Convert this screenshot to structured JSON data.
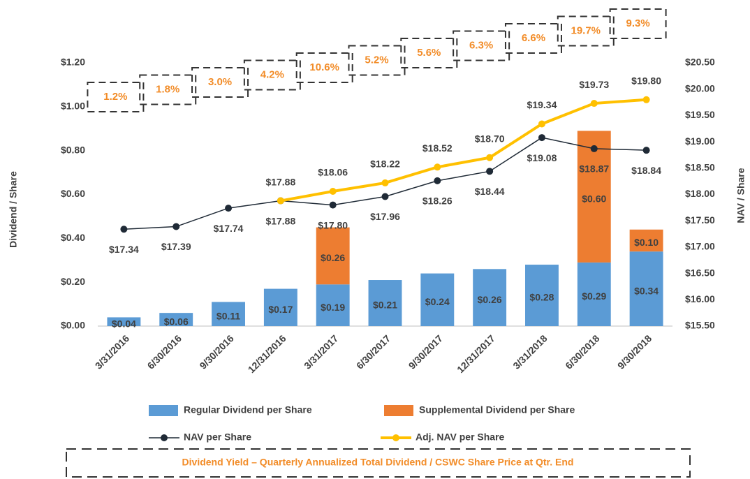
{
  "chart_data": {
    "type": "combo",
    "categories": [
      "3/31/2016",
      "6/30/2016",
      "9/30/2016",
      "12/31/2016",
      "3/31/2017",
      "6/30/2017",
      "9/30/2017",
      "12/31/2017",
      "3/31/2018",
      "6/30/2018",
      "9/30/2018"
    ],
    "ylabel": "Dividend / Share",
    "y2label": "NAV / Share",
    "ylim": [
      0,
      1.2
    ],
    "yticks": [
      {
        "value": 0,
        "label": "$0.00"
      },
      {
        "value": 0.2,
        "label": "$0.20"
      },
      {
        "value": 0.4,
        "label": "$0.40"
      },
      {
        "value": 0.6,
        "label": "$0.60"
      },
      {
        "value": 0.8,
        "label": "$0.80"
      },
      {
        "value": 1.0,
        "label": "$1.00"
      },
      {
        "value": 1.2,
        "label": "$1.20"
      }
    ],
    "y2lim": [
      15.5,
      20.5
    ],
    "y2ticks": [
      {
        "value": 15.5,
        "label": "$15.50"
      },
      {
        "value": 16,
        "label": "$16.00"
      },
      {
        "value": 16.5,
        "label": "$16.50"
      },
      {
        "value": 17,
        "label": "$17.00"
      },
      {
        "value": 17.5,
        "label": "$17.50"
      },
      {
        "value": 18,
        "label": "$18.00"
      },
      {
        "value": 18.5,
        "label": "$18.50"
      },
      {
        "value": 19,
        "label": "$19.00"
      },
      {
        "value": 19.5,
        "label": "$19.50"
      },
      {
        "value": 20,
        "label": "$20.00"
      },
      {
        "value": 20.5,
        "label": "$20.50"
      }
    ],
    "legend": "bottom",
    "series": [
      {
        "name": "Regular Dividend per Share",
        "type": "bar",
        "color": "#5b9bd5",
        "values": [
          0.04,
          0.06,
          0.11,
          0.17,
          0.19,
          0.21,
          0.24,
          0.26,
          0.28,
          0.29,
          0.34
        ],
        "value_labels": [
          "$0.04",
          "$0.06",
          "$0.11",
          "$0.17",
          "$0.19",
          "$0.21",
          "$0.24",
          "$0.26",
          "$0.28",
          "$0.29",
          "$0.34"
        ]
      },
      {
        "name": "Supplemental Dividend per Share",
        "type": "bar",
        "color": "#ed7d31",
        "values": [
          null,
          null,
          null,
          null,
          0.26,
          null,
          null,
          null,
          null,
          0.6,
          0.1
        ],
        "value_labels": [
          null,
          null,
          null,
          null,
          "$0.26",
          null,
          null,
          null,
          null,
          "$0.60",
          "$0.10"
        ]
      },
      {
        "name": "NAV per Share",
        "type": "line",
        "axis": "y2",
        "color": "#1f2a36",
        "values": [
          17.34,
          17.39,
          17.74,
          17.88,
          17.8,
          17.96,
          18.26,
          18.44,
          19.08,
          18.87,
          18.84
        ],
        "value_labels": [
          "$17.34",
          "$17.39",
          "$17.74",
          "$17.88",
          "$17.80",
          "$17.96",
          "$18.26",
          "$18.44",
          "$19.08",
          "$18.87",
          "$18.84"
        ]
      },
      {
        "name": "Adj. NAV per Share",
        "type": "line",
        "axis": "y2",
        "color": "#ffc000",
        "values": [
          null,
          null,
          null,
          17.88,
          18.06,
          18.22,
          18.52,
          18.7,
          19.34,
          19.73,
          19.8
        ],
        "value_labels": [
          null,
          null,
          null,
          "$17.88",
          "$18.06",
          "$18.22",
          "$18.52",
          "$18.70",
          "$19.34",
          "$19.73",
          "$19.80"
        ]
      }
    ],
    "dividend_yield": {
      "values": [
        1.2,
        1.8,
        3.0,
        4.2,
        10.6,
        5.2,
        5.6,
        6.3,
        6.6,
        19.7,
        9.3
      ],
      "value_labels": [
        "1.2%",
        "1.8%",
        "3.0%",
        "4.2%",
        "10.6%",
        "5.2%",
        "5.6%",
        "6.3%",
        "6.6%",
        "19.7%",
        "9.3%"
      ]
    },
    "footnote": "Dividend Yield – Quarterly Annualized Total Dividend / CSWC Share Price at Qtr. End"
  }
}
